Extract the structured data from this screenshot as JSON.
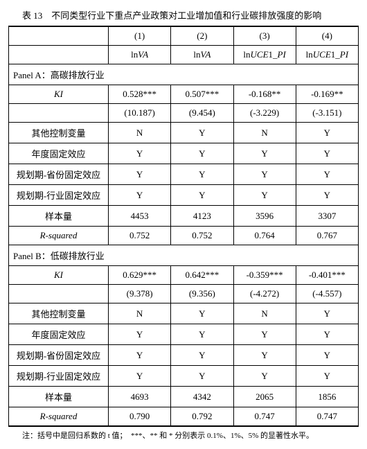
{
  "title": "表 13　不同类型行业下重点产业政策对工业增加值和行业碳排放强度的影响",
  "note": "注：括号中是回归系数的 t 值；　***、** 和 * 分别表示 0.1%、1%、5% 的显著性水平。",
  "header": {
    "num1": "(1)",
    "num2": "(2)",
    "num3": "(3)",
    "num4": "(4)",
    "dep1": "lnVA",
    "dep2": "lnVA",
    "dep3": "lnUCE1_PI",
    "dep4": "lnUCE1_PI"
  },
  "panelA": {
    "title": "Panel A：高碳排放行业",
    "KI_label": "KI",
    "KI": {
      "c1": "0.528***",
      "c2": "0.507***",
      "c3": "-0.168**",
      "c4": "-0.169**"
    },
    "KIt": {
      "c1": "(10.187)",
      "c2": "(9.454)",
      "c3": "(-3.229)",
      "c4": "(-3.151)"
    },
    "rows": [
      {
        "label": "其他控制变量",
        "c1": "N",
        "c2": "Y",
        "c3": "N",
        "c4": "Y"
      },
      {
        "label": "年度固定效应",
        "c1": "Y",
        "c2": "Y",
        "c3": "Y",
        "c4": "Y"
      },
      {
        "label": "规划期-省份固定效应",
        "c1": "Y",
        "c2": "Y",
        "c3": "Y",
        "c4": "Y"
      },
      {
        "label": "规划期-行业固定效应",
        "c1": "Y",
        "c2": "Y",
        "c3": "Y",
        "c4": "Y"
      },
      {
        "label": "样本量",
        "c1": "4453",
        "c2": "4123",
        "c3": "3596",
        "c4": "3307"
      }
    ],
    "r2_label": "R-squared",
    "r2": {
      "c1": "0.752",
      "c2": "0.752",
      "c3": "0.764",
      "c4": "0.767"
    }
  },
  "panelB": {
    "title": "Panel B：低碳排放行业",
    "KI_label": "KI",
    "KI": {
      "c1": "0.629***",
      "c2": "0.642***",
      "c3": "-0.359***",
      "c4": "-0.401***"
    },
    "KIt": {
      "c1": "(9.378)",
      "c2": "(9.356)",
      "c3": "(-4.272)",
      "c4": "(-4.557)"
    },
    "rows": [
      {
        "label": "其他控制变量",
        "c1": "N",
        "c2": "Y",
        "c3": "N",
        "c4": "Y"
      },
      {
        "label": "年度固定效应",
        "c1": "Y",
        "c2": "Y",
        "c3": "Y",
        "c4": "Y"
      },
      {
        "label": "规划期-省份固定效应",
        "c1": "Y",
        "c2": "Y",
        "c3": "Y",
        "c4": "Y"
      },
      {
        "label": "规划期-行业固定效应",
        "c1": "Y",
        "c2": "Y",
        "c3": "Y",
        "c4": "Y"
      },
      {
        "label": "样本量",
        "c1": "4693",
        "c2": "4342",
        "c3": "2065",
        "c4": "1856"
      }
    ],
    "r2_label": "R-squared",
    "r2": {
      "c1": "0.790",
      "c2": "0.792",
      "c3": "0.747",
      "c4": "0.747"
    }
  }
}
